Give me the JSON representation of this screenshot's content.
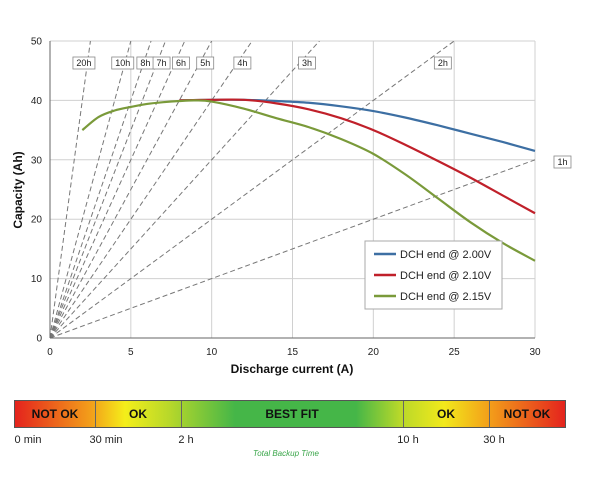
{
  "chart_data": {
    "type": "line",
    "title": "",
    "xlabel": "Discharge current (A)",
    "ylabel": "Capacity (Ah)",
    "xlim": [
      0,
      30
    ],
    "ylim": [
      0,
      50
    ],
    "xticks": [
      "0",
      "5",
      "10",
      "15",
      "20",
      "25",
      "30"
    ],
    "yticks": [
      "0",
      "10",
      "20",
      "30",
      "40",
      "50"
    ],
    "grid": true,
    "legend_position": "lower-right",
    "series": [
      {
        "name": "DCH end @ 2.00V",
        "color": "#3d6fa3",
        "x": [
          8,
          10,
          12,
          14,
          16,
          18,
          20,
          22,
          24,
          26,
          28,
          30
        ],
        "y": [
          40,
          40.1,
          40.1,
          39.9,
          39.6,
          39,
          38.2,
          37.1,
          35.8,
          34.4,
          33,
          31.5
        ]
      },
      {
        "name": "DCH end @ 2.10V",
        "color": "#c0202a",
        "x": [
          8,
          10,
          12,
          14,
          16,
          18,
          20,
          22,
          24,
          26,
          28,
          30
        ],
        "y": [
          40,
          40.1,
          40.1,
          39.5,
          38.5,
          37,
          35,
          32.5,
          29.8,
          27,
          24,
          21
        ]
      },
      {
        "name": "DCH end @ 2.15V",
        "color": "#7a9a3a",
        "x": [
          2,
          3,
          4,
          5,
          6,
          7,
          8,
          9,
          10,
          12,
          14,
          16,
          18,
          20,
          22,
          24,
          26,
          28,
          30
        ],
        "y": [
          35,
          37.2,
          38.3,
          38.9,
          39.4,
          39.7,
          39.9,
          40,
          39.8,
          38.6,
          37,
          35.5,
          33.5,
          31,
          27.5,
          23.5,
          19.5,
          16,
          13
        ]
      }
    ],
    "hour_lines": [
      {
        "label": "20h",
        "slope": 20,
        "label_x": 2.1
      },
      {
        "label": "10h",
        "slope": 10,
        "label_x": 4.5
      },
      {
        "label": "8h",
        "slope": 8,
        "label_x": 5.9
      },
      {
        "label": "7h",
        "slope": 7,
        "label_x": 6.9
      },
      {
        "label": "6h",
        "slope": 6,
        "label_x": 8.1
      },
      {
        "label": "5h",
        "slope": 5,
        "label_x": 9.6
      },
      {
        "label": "4h",
        "slope": 4,
        "label_x": 11.9
      },
      {
        "label": "3h",
        "slope": 3,
        "label_x": 15.9
      },
      {
        "label": "2h",
        "slope": 2,
        "label_x": 24.3
      },
      {
        "label": "1h",
        "slope": 1,
        "label_x": 31.7
      }
    ]
  },
  "backup_scale": {
    "title": "Total Backup Time",
    "segments": [
      {
        "label": "NOT OK"
      },
      {
        "label": "OK"
      },
      {
        "label": "BEST FIT"
      },
      {
        "label": "OK"
      },
      {
        "label": "NOT OK"
      }
    ],
    "ticks": [
      "0 min",
      "30 min",
      "2 h",
      "10 h",
      "30 h"
    ]
  }
}
